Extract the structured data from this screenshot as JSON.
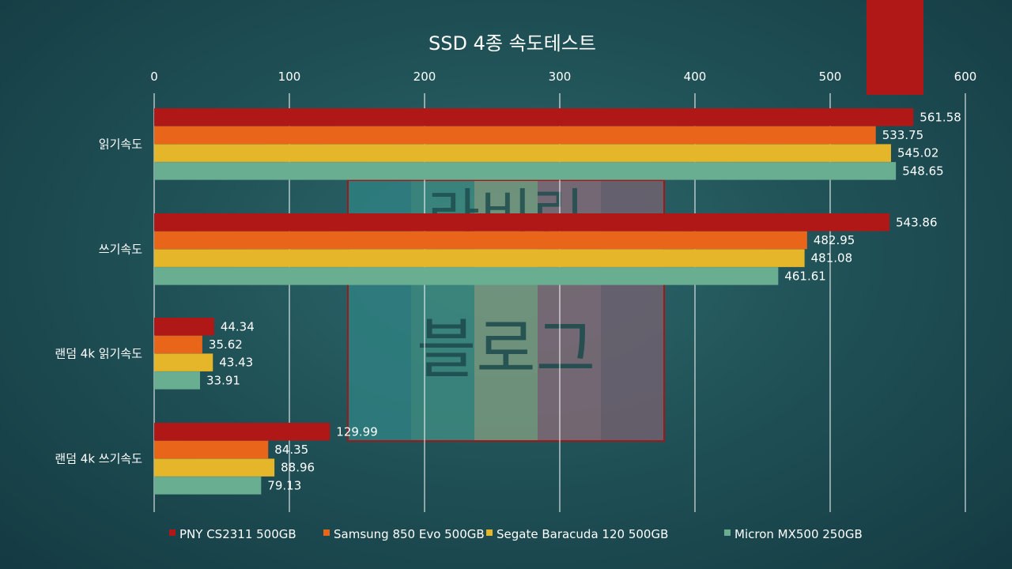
{
  "chart_data": {
    "type": "bar",
    "orientation": "horizontal",
    "title": "SSD 4종 속도테스트",
    "categories": [
      "읽기속도",
      "쓰기속도",
      "랜덤 4k 읽기속도",
      "랜덤 4k 쓰기속도"
    ],
    "series": [
      {
        "name": "PNY CS2311 500GB",
        "color": "#b01818",
        "values": [
          561.58,
          543.86,
          44.34,
          129.99
        ]
      },
      {
        "name": "Samsung 850 Evo 500GB",
        "color": "#e8651a",
        "values": [
          533.75,
          482.95,
          35.62,
          84.35
        ]
      },
      {
        "name": "Segate Baracuda 120 500GB",
        "color": "#e6b62a",
        "values": [
          545.02,
          481.08,
          43.43,
          88.96
        ]
      },
      {
        "name": "Micron MX500 250GB",
        "color": "#6aae92",
        "values": [
          548.65,
          461.61,
          33.91,
          79.13
        ]
      }
    ],
    "xlim": [
      0,
      600
    ],
    "xticks": [
      0,
      100,
      200,
      300,
      400,
      500,
      600
    ],
    "grid": true,
    "legend_position": "bottom",
    "axis_position": "top"
  },
  "watermark": {
    "text_top": "라비린",
    "text_bottom": "블로그",
    "stripe_colors": [
      "#2f7f80",
      "#3d8a80",
      "#7a9a80",
      "#806a75",
      "#70606e"
    ],
    "border_color": "#a01818"
  },
  "decoration": {
    "corner_tab_color": "#b01818"
  }
}
